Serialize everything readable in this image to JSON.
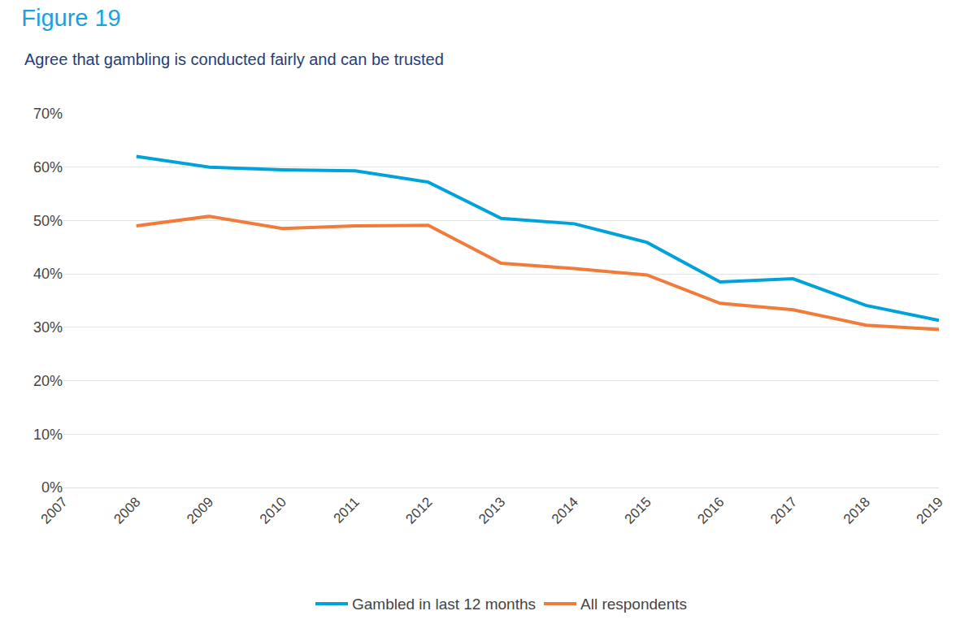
{
  "chart_data": {
    "type": "line",
    "title": "Figure 19",
    "subtitle": "Agree that gambling is conducted fairly and can be trusted",
    "categories": [
      "2007",
      "2008",
      "2009",
      "2010",
      "2011",
      "2012",
      "2013",
      "2014",
      "2015",
      "2016",
      "2017",
      "2018",
      "2019"
    ],
    "series": [
      {
        "name": "Gambled in last 12 months",
        "color": "#00a3d9",
        "values": [
          null,
          62,
          60,
          59.5,
          59.3,
          57.2,
          50.4,
          49.4,
          45.9,
          38.5,
          39.1,
          34.1,
          31.3
        ]
      },
      {
        "name": "All respondents",
        "color": "#f07b3a",
        "values": [
          null,
          49,
          50.8,
          48.5,
          49,
          49.1,
          42,
          41,
          39.8,
          34.5,
          33.3,
          30.4,
          29.6
        ]
      }
    ],
    "ylim": [
      0,
      70
    ],
    "yticks": [
      {
        "value": 0,
        "label": "0%"
      },
      {
        "value": 10,
        "label": "10%"
      },
      {
        "value": 20,
        "label": "20%"
      },
      {
        "value": 30,
        "label": "30%"
      },
      {
        "value": 40,
        "label": "40%"
      },
      {
        "value": 50,
        "label": "50%"
      },
      {
        "value": 60,
        "label": "60%"
      },
      {
        "value": 70,
        "label": "70%"
      }
    ],
    "grid": true,
    "legend": "bottom"
  }
}
